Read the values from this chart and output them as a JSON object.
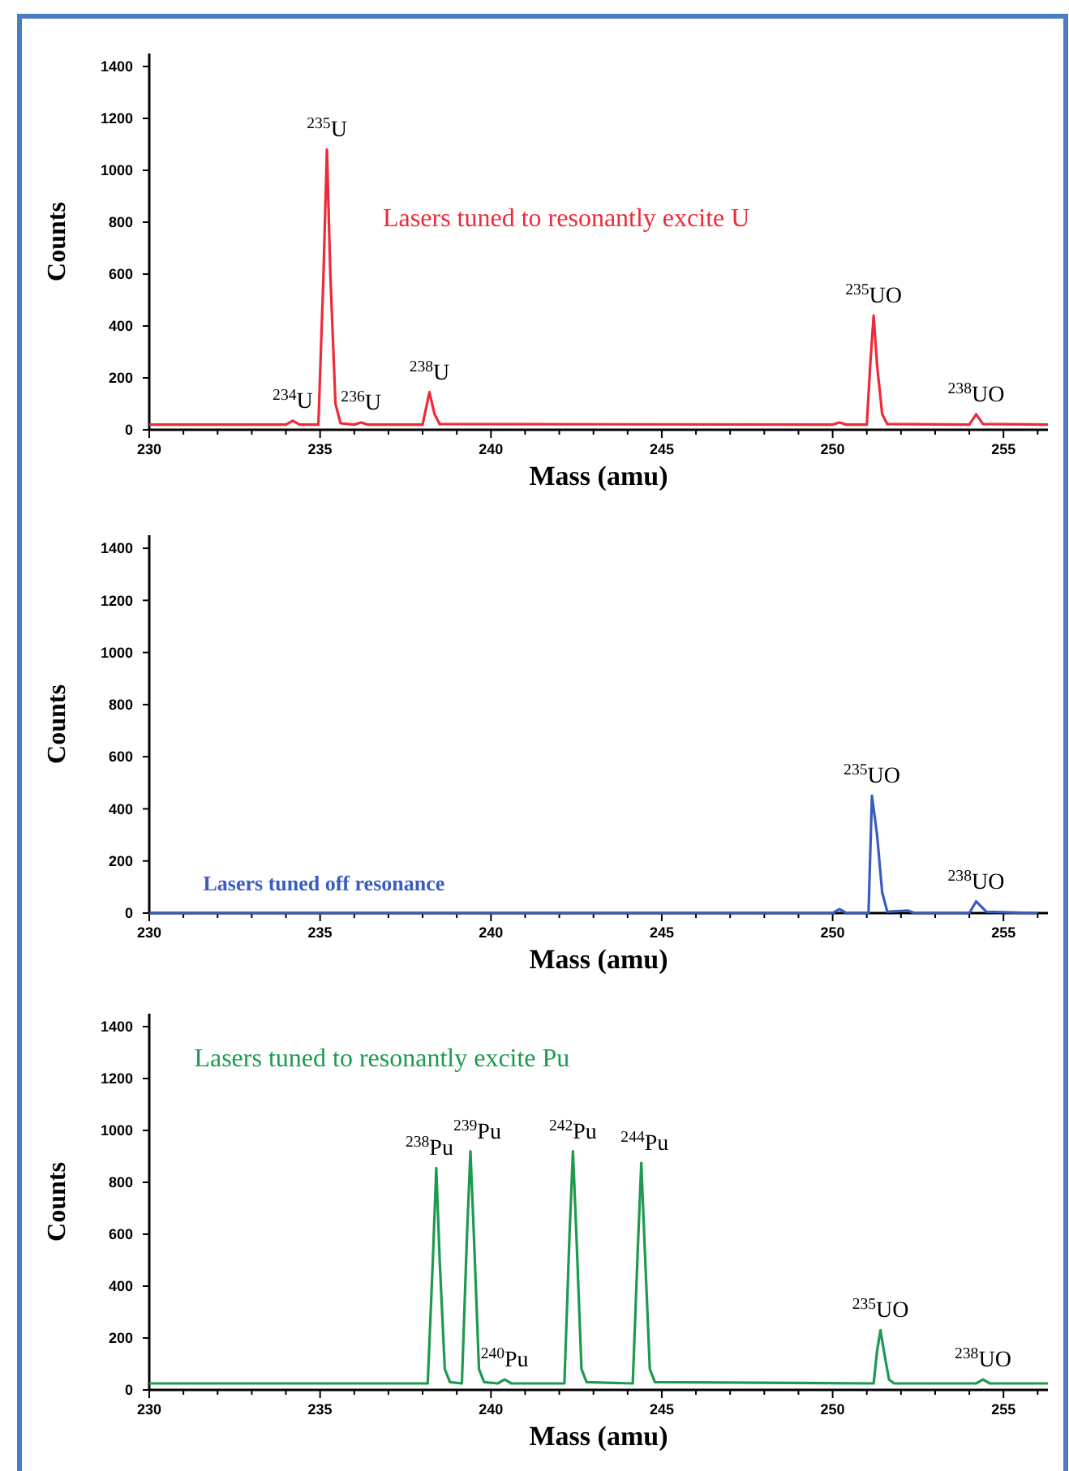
{
  "chart_data": [
    {
      "type": "line",
      "xlabel": "Mass (amu)",
      "ylabel": "Counts",
      "xlim": [
        230,
        256.3
      ],
      "ylim": [
        0,
        1450
      ],
      "xticks": [
        230,
        {
          "value": 231,
          "label": null
        },
        {
          "value": 232,
          "label": null
        },
        {
          "value": 233,
          "label": null
        },
        {
          "value": 234,
          "label": null
        },
        235,
        {
          "value": 236,
          "label": null
        },
        {
          "value": 237,
          "label": null
        },
        {
          "value": 238,
          "label": null
        },
        {
          "value": 239,
          "label": null
        },
        240,
        {
          "value": 241,
          "label": null
        },
        {
          "value": 242,
          "label": null
        },
        {
          "value": 243,
          "label": null
        },
        {
          "value": 244,
          "label": null
        },
        245,
        {
          "value": 246,
          "label": null
        },
        {
          "value": 247,
          "label": null
        },
        {
          "value": 248,
          "label": null
        },
        {
          "value": 249,
          "label": null
        },
        250,
        {
          "value": 251,
          "label": null
        },
        {
          "value": 252,
          "label": null
        },
        {
          "value": 253,
          "label": null
        },
        {
          "value": 254,
          "label": null
        },
        255,
        {
          "value": 256,
          "label": null
        }
      ],
      "yticks": [
        0,
        200,
        400,
        600,
        800,
        1000,
        1200,
        1400
      ],
      "grid": false,
      "marker": "none",
      "line_style": "solid",
      "series": [
        {
          "color": "#ee2a3a",
          "x": [
            230,
            234.0,
            234.2,
            234.4,
            234.95,
            235.1,
            235.2,
            235.3,
            235.45,
            235.6,
            236.0,
            236.2,
            236.4,
            238.0,
            238.2,
            238.35,
            238.5,
            250.0,
            250.2,
            250.4,
            251.0,
            251.1,
            251.2,
            251.3,
            251.45,
            251.6,
            254.0,
            254.2,
            254.4,
            256.3
          ],
          "values": [
            20,
            20,
            35,
            20,
            20,
            600,
            1080,
            600,
            100,
            25,
            20,
            28,
            20,
            20,
            145,
            60,
            22,
            20,
            28,
            20,
            20,
            250,
            440,
            250,
            60,
            22,
            20,
            60,
            22,
            20
          ]
        }
      ],
      "annotations": [
        "Lasers tuned to resonantly excite U",
        {
          "text": "$^{234}$U",
          "x": 234.2,
          "y": 35
        },
        {
          "text": "$^{235}$U",
          "x": 235.2,
          "y": 1080
        },
        {
          "text": "$^{236}$U",
          "x": 236.2,
          "y": 28
        },
        {
          "text": "$^{238}$U",
          "x": 238.2,
          "y": 145
        },
        {
          "text": "$^{235}$UO",
          "x": 251.2,
          "y": 440
        },
        {
          "text": "$^{238}$UO",
          "x": 254.2,
          "y": 60
        }
      ]
    },
    {
      "type": "line",
      "xlabel": "Mass (amu)",
      "ylabel": "Counts",
      "xlim": [
        230,
        256.3
      ],
      "ylim": [
        0,
        1450
      ],
      "xticks": [
        230,
        {
          "value": 231,
          "label": null
        },
        {
          "value": 232,
          "label": null
        },
        {
          "value": 233,
          "label": null
        },
        {
          "value": 234,
          "label": null
        },
        235,
        {
          "value": 236,
          "label": null
        },
        {
          "value": 237,
          "label": null
        },
        {
          "value": 238,
          "label": null
        },
        {
          "value": 239,
          "label": null
        },
        240,
        {
          "value": 241,
          "label": null
        },
        {
          "value": 242,
          "label": null
        },
        {
          "value": 243,
          "label": null
        },
        {
          "value": 244,
          "label": null
        },
        245,
        {
          "value": 246,
          "label": null
        },
        {
          "value": 247,
          "label": null
        },
        {
          "value": 248,
          "label": null
        },
        {
          "value": 249,
          "label": null
        },
        250,
        {
          "value": 251,
          "label": null
        },
        {
          "value": 252,
          "label": null
        },
        {
          "value": 253,
          "label": null
        },
        {
          "value": 254,
          "label": null
        },
        255,
        {
          "value": 256,
          "label": null
        }
      ],
      "yticks": [
        0,
        200,
        400,
        600,
        800,
        1000,
        1200,
        1400
      ],
      "grid": false,
      "marker": "none",
      "line_style": "solid",
      "series": [
        {
          "color": "#3a5cc0",
          "x": [
            230,
            250.0,
            250.2,
            250.4,
            251.05,
            251.15,
            251.3,
            251.45,
            251.6,
            252.2,
            252.4,
            254.0,
            254.2,
            254.5,
            256.0
          ],
          "values": [
            0,
            0,
            15,
            0,
            0,
            450,
            300,
            80,
            5,
            10,
            0,
            0,
            45,
            5,
            0
          ]
        }
      ],
      "annotations": [
        "Lasers tuned off resonance",
        {
          "text": "$^{235}$UO",
          "x": 251.15,
          "y": 450
        },
        {
          "text": "$^{238}$UO",
          "x": 254.2,
          "y": 45
        }
      ]
    },
    {
      "type": "line",
      "xlabel": "Mass (amu)",
      "ylabel": "Counts",
      "xlim": [
        230,
        256.3
      ],
      "ylim": [
        0,
        1450
      ],
      "xticks": [
        230,
        {
          "value": 231,
          "label": null
        },
        {
          "value": 232,
          "label": null
        },
        {
          "value": 233,
          "label": null
        },
        {
          "value": 234,
          "label": null
        },
        235,
        {
          "value": 236,
          "label": null
        },
        {
          "value": 237,
          "label": null
        },
        {
          "value": 238,
          "label": null
        },
        {
          "value": 239,
          "label": null
        },
        240,
        {
          "value": 241,
          "label": null
        },
        {
          "value": 242,
          "label": null
        },
        {
          "value": 243,
          "label": null
        },
        {
          "value": 244,
          "label": null
        },
        245,
        {
          "value": 246,
          "label": null
        },
        {
          "value": 247,
          "label": null
        },
        {
          "value": 248,
          "label": null
        },
        {
          "value": 249,
          "label": null
        },
        250,
        {
          "value": 251,
          "label": null
        },
        {
          "value": 252,
          "label": null
        },
        {
          "value": 253,
          "label": null
        },
        {
          "value": 254,
          "label": null
        },
        255,
        {
          "value": 256,
          "label": null
        }
      ],
      "yticks": [
        0,
        200,
        400,
        600,
        800,
        1000,
        1200,
        1400
      ],
      "grid": false,
      "marker": "none",
      "line_style": "solid",
      "series": [
        {
          "color": "#1e9a50",
          "x": [
            230,
            238.15,
            238.3,
            238.4,
            238.5,
            238.65,
            238.8,
            239.15,
            239.3,
            239.4,
            239.5,
            239.65,
            239.8,
            240.2,
            240.4,
            240.6,
            242.15,
            242.3,
            242.4,
            242.5,
            242.65,
            242.8,
            244.15,
            244.3,
            244.4,
            244.5,
            244.65,
            244.8,
            251.2,
            251.3,
            251.4,
            251.5,
            251.65,
            251.8,
            254.2,
            254.4,
            254.6,
            256.3
          ],
          "values": [
            25,
            25,
            500,
            855,
            500,
            80,
            30,
            25,
            600,
            920,
            600,
            80,
            30,
            25,
            40,
            25,
            25,
            600,
            920,
            600,
            80,
            30,
            25,
            550,
            875,
            550,
            80,
            30,
            25,
            150,
            230,
            150,
            40,
            25,
            25,
            40,
            25,
            25
          ]
        }
      ],
      "annotations": [
        "Lasers tuned to resonantly excite Pu",
        {
          "text": "$^{238}$Pu",
          "x": 238.2,
          "y": 855
        },
        {
          "text": "$^{239}$Pu",
          "x": 239.6,
          "y": 920
        },
        {
          "text": "$^{240}$Pu",
          "x": 240.4,
          "y": 40
        },
        {
          "text": "$^{242}$Pu",
          "x": 242.4,
          "y": 920
        },
        {
          "text": "$^{244}$Pu",
          "x": 244.5,
          "y": 875
        },
        {
          "text": "$^{235}$UO",
          "x": 251.4,
          "y": 230
        },
        {
          "text": "$^{238}$UO",
          "x": 254.4,
          "y": 40
        }
      ]
    }
  ]
}
